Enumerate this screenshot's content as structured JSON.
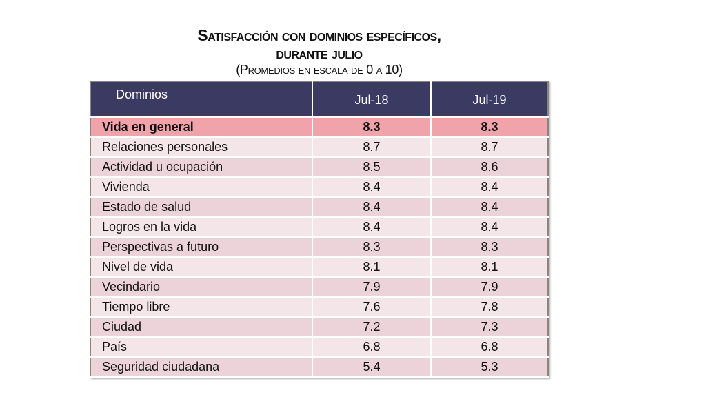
{
  "title": {
    "line1": "Satisfacción con dominios específicos,",
    "line2": "durante julio",
    "subtitle": "(Promedios en escala de 0 a 10)"
  },
  "table": {
    "headers": [
      "Dominios",
      "Jul-18",
      "Jul-19"
    ],
    "rows": [
      {
        "label": "Vida en general",
        "jul18": "8.3",
        "jul19": "8.3"
      },
      {
        "label": "Relaciones personales",
        "jul18": "8.7",
        "jul19": "8.7"
      },
      {
        "label": "Actividad u ocupación",
        "jul18": "8.5",
        "jul19": "8.6"
      },
      {
        "label": "Vivienda",
        "jul18": "8.4",
        "jul19": "8.4"
      },
      {
        "label": "Estado de salud",
        "jul18": "8.4",
        "jul19": "8.4"
      },
      {
        "label": "Logros en la vida",
        "jul18": "8.4",
        "jul19": "8.4"
      },
      {
        "label": "Perspectivas a futuro",
        "jul18": "8.3",
        "jul19": "8.3"
      },
      {
        "label": "Nivel de vida",
        "jul18": "8.1",
        "jul19": "8.1"
      },
      {
        "label": "Vecindario",
        "jul18": "7.9",
        "jul19": "7.9"
      },
      {
        "label": "Tiempo libre",
        "jul18": "7.6",
        "jul19": "7.8"
      },
      {
        "label": "Ciudad",
        "jul18": "7.2",
        "jul19": "7.3"
      },
      {
        "label": "País",
        "jul18": "6.8",
        "jul19": "6.8"
      },
      {
        "label": "Seguridad ciudadana",
        "jul18": "5.4",
        "jul19": "5.3"
      }
    ]
  },
  "colors": {
    "header": "#3b3a62",
    "highlight": "#f0a3aa",
    "row_light": "#f4e5e9",
    "row_dark": "#ebd3d9"
  }
}
